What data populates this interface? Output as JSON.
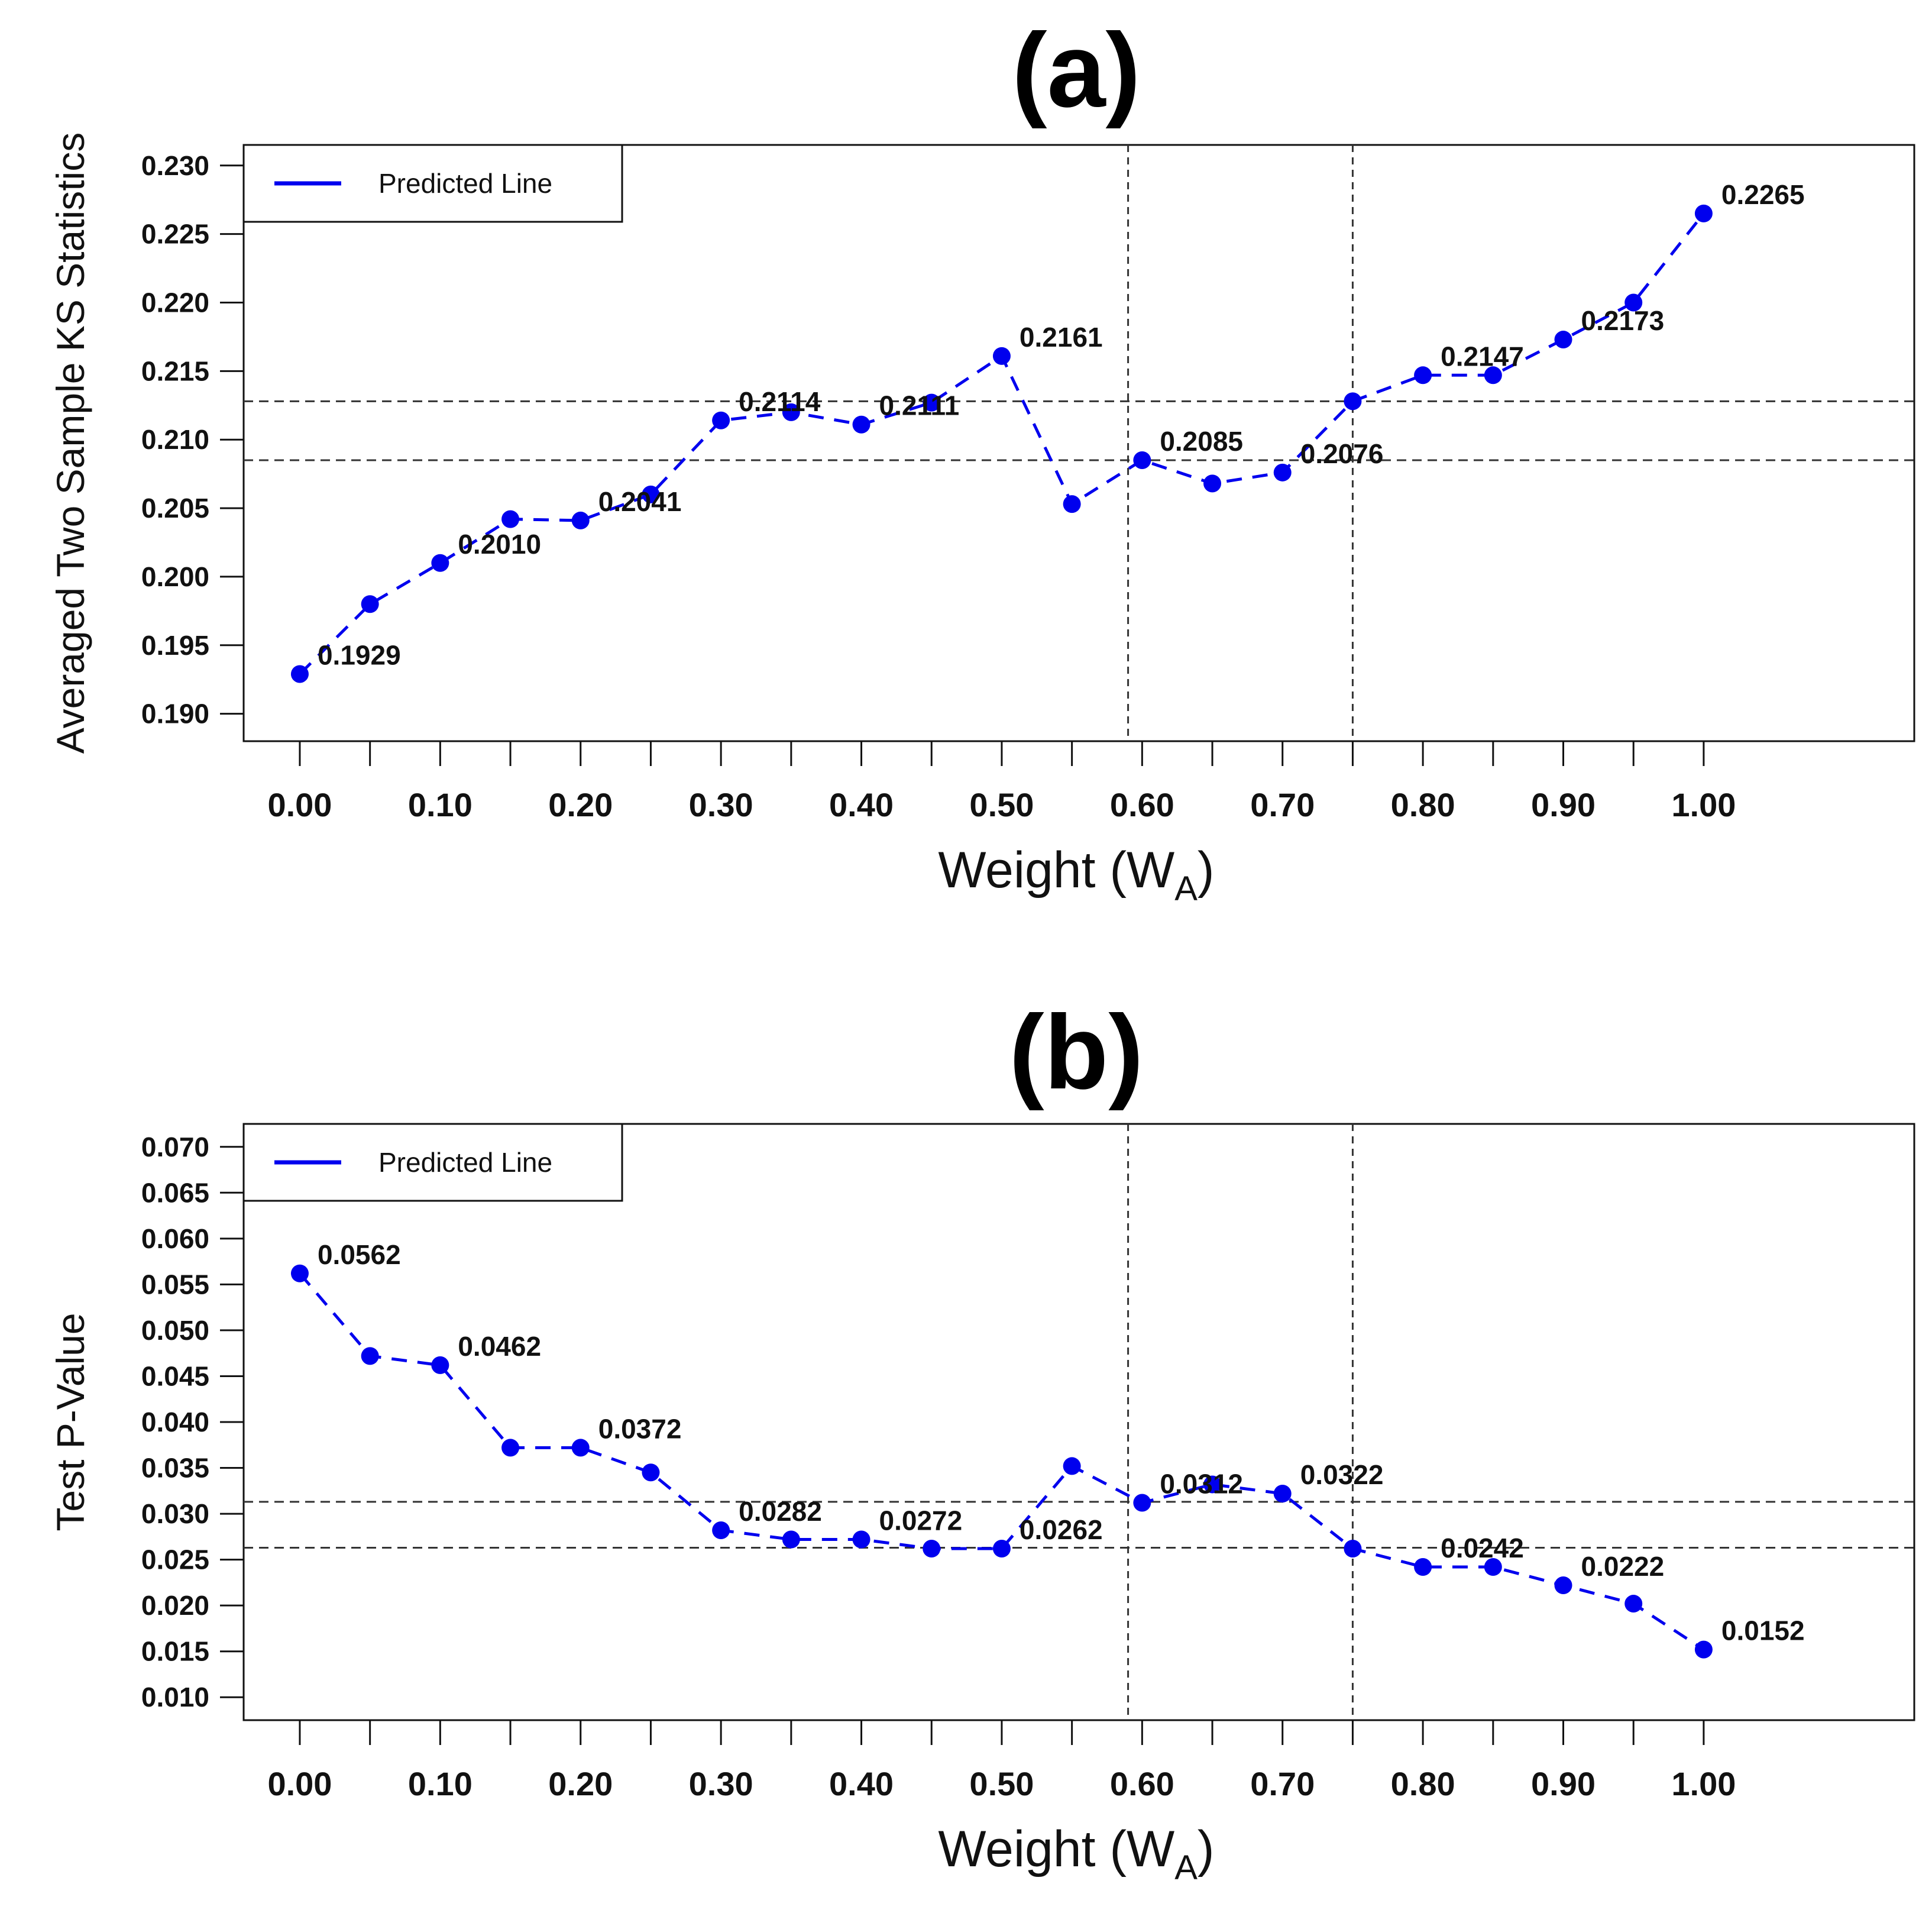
{
  "colors": {
    "series": "#0000ee",
    "axis": "#111111",
    "reference": "#333333"
  },
  "chart_data": [
    {
      "type": "line",
      "title": "(a)",
      "xlabel": "Weight (W",
      "xlabel_sub": "A",
      "xlabel_close": ")",
      "ylabel": "Averaged Two Sample KS Statistics",
      "legend": {
        "label": "Predicted Line",
        "position": "top-left"
      },
      "ylim": [
        0.188,
        0.2315
      ],
      "xlim": [
        -0.04,
        1.15
      ],
      "yticks": [
        "0.230",
        "0.225",
        "0.220",
        "0.215",
        "0.210",
        "0.205",
        "0.200",
        "0.195",
        "0.190"
      ],
      "xtick_labels": [
        "0.00",
        "0.10",
        "0.20",
        "0.30",
        "0.40",
        "0.50",
        "0.60",
        "0.70",
        "0.80",
        "0.90",
        "1.00"
      ],
      "x": [
        0.0,
        0.05,
        0.1,
        0.15,
        0.2,
        0.25,
        0.3,
        0.35,
        0.4,
        0.45,
        0.5,
        0.55,
        0.6,
        0.65,
        0.7,
        0.75,
        0.8,
        0.85,
        0.9,
        0.95,
        1.0
      ],
      "y": [
        0.1929,
        0.198,
        0.201,
        0.2042,
        0.2041,
        0.206,
        0.2114,
        0.212,
        0.2111,
        0.2127,
        0.2161,
        0.2053,
        0.2085,
        0.2068,
        0.2076,
        0.2128,
        0.2147,
        0.2147,
        0.2173,
        0.22,
        0.2265
      ],
      "point_labels": [
        {
          "x": 0.0,
          "y": 0.1929,
          "text": "0.1929"
        },
        {
          "x": 0.1,
          "y": 0.201,
          "text": "0.2010"
        },
        {
          "x": 0.2,
          "y": 0.2041,
          "text": "0.2041"
        },
        {
          "x": 0.3,
          "y": 0.2114,
          "text": "0.2114"
        },
        {
          "x": 0.4,
          "y": 0.2111,
          "text": "0.2111"
        },
        {
          "x": 0.5,
          "y": 0.2161,
          "text": "0.2161"
        },
        {
          "x": 0.6,
          "y": 0.2085,
          "text": "0.2085"
        },
        {
          "x": 0.7,
          "y": 0.2076,
          "text": "0.2076"
        },
        {
          "x": 0.8,
          "y": 0.2147,
          "text": "0.2147"
        },
        {
          "x": 0.9,
          "y": 0.2173,
          "text": "0.2173"
        },
        {
          "x": 1.0,
          "y": 0.2265,
          "text": "0.2265"
        }
      ],
      "hlines": [
        0.2128,
        0.2085
      ],
      "vlines": [
        0.59,
        0.75
      ]
    },
    {
      "type": "line",
      "title": "(b)",
      "xlabel": "Weight (W",
      "xlabel_sub": "A",
      "xlabel_close": ")",
      "ylabel": "Test P-Value",
      "legend": {
        "label": "Predicted Line",
        "position": "top-left"
      },
      "ylim": [
        0.0075,
        0.0725
      ],
      "xlim": [
        -0.04,
        1.15
      ],
      "yticks": [
        "0.070",
        "0.065",
        "0.060",
        "0.055",
        "0.050",
        "0.045",
        "0.040",
        "0.035",
        "0.030",
        "0.025",
        "0.020",
        "0.015",
        "0.010"
      ],
      "xtick_labels": [
        "0.00",
        "0.10",
        "0.20",
        "0.30",
        "0.40",
        "0.50",
        "0.60",
        "0.70",
        "0.80",
        "0.90",
        "1.00"
      ],
      "x": [
        0.0,
        0.05,
        0.1,
        0.15,
        0.2,
        0.25,
        0.3,
        0.35,
        0.4,
        0.45,
        0.5,
        0.55,
        0.6,
        0.65,
        0.7,
        0.75,
        0.8,
        0.85,
        0.9,
        0.95,
        1.0
      ],
      "y": [
        0.0562,
        0.0472,
        0.0462,
        0.0372,
        0.0372,
        0.0345,
        0.0282,
        0.0272,
        0.0272,
        0.0262,
        0.0262,
        0.0352,
        0.0312,
        0.0332,
        0.0322,
        0.0262,
        0.0242,
        0.0242,
        0.0222,
        0.0202,
        0.0152
      ],
      "point_labels": [
        {
          "x": 0.0,
          "y": 0.0562,
          "text": "0.0562"
        },
        {
          "x": 0.1,
          "y": 0.0462,
          "text": "0.0462"
        },
        {
          "x": 0.2,
          "y": 0.0372,
          "text": "0.0372"
        },
        {
          "x": 0.3,
          "y": 0.0282,
          "text": "0.0282"
        },
        {
          "x": 0.4,
          "y": 0.0272,
          "text": "0.0272"
        },
        {
          "x": 0.5,
          "y": 0.0262,
          "text": "0.0262"
        },
        {
          "x": 0.6,
          "y": 0.0312,
          "text": "0.0312"
        },
        {
          "x": 0.7,
          "y": 0.0322,
          "text": "0.0322"
        },
        {
          "x": 0.8,
          "y": 0.0242,
          "text": "0.0242"
        },
        {
          "x": 0.9,
          "y": 0.0222,
          "text": "0.0222"
        },
        {
          "x": 1.0,
          "y": 0.0152,
          "text": "0.0152"
        }
      ],
      "hlines": [
        0.0313,
        0.0263
      ],
      "vlines": [
        0.59,
        0.75
      ]
    }
  ]
}
